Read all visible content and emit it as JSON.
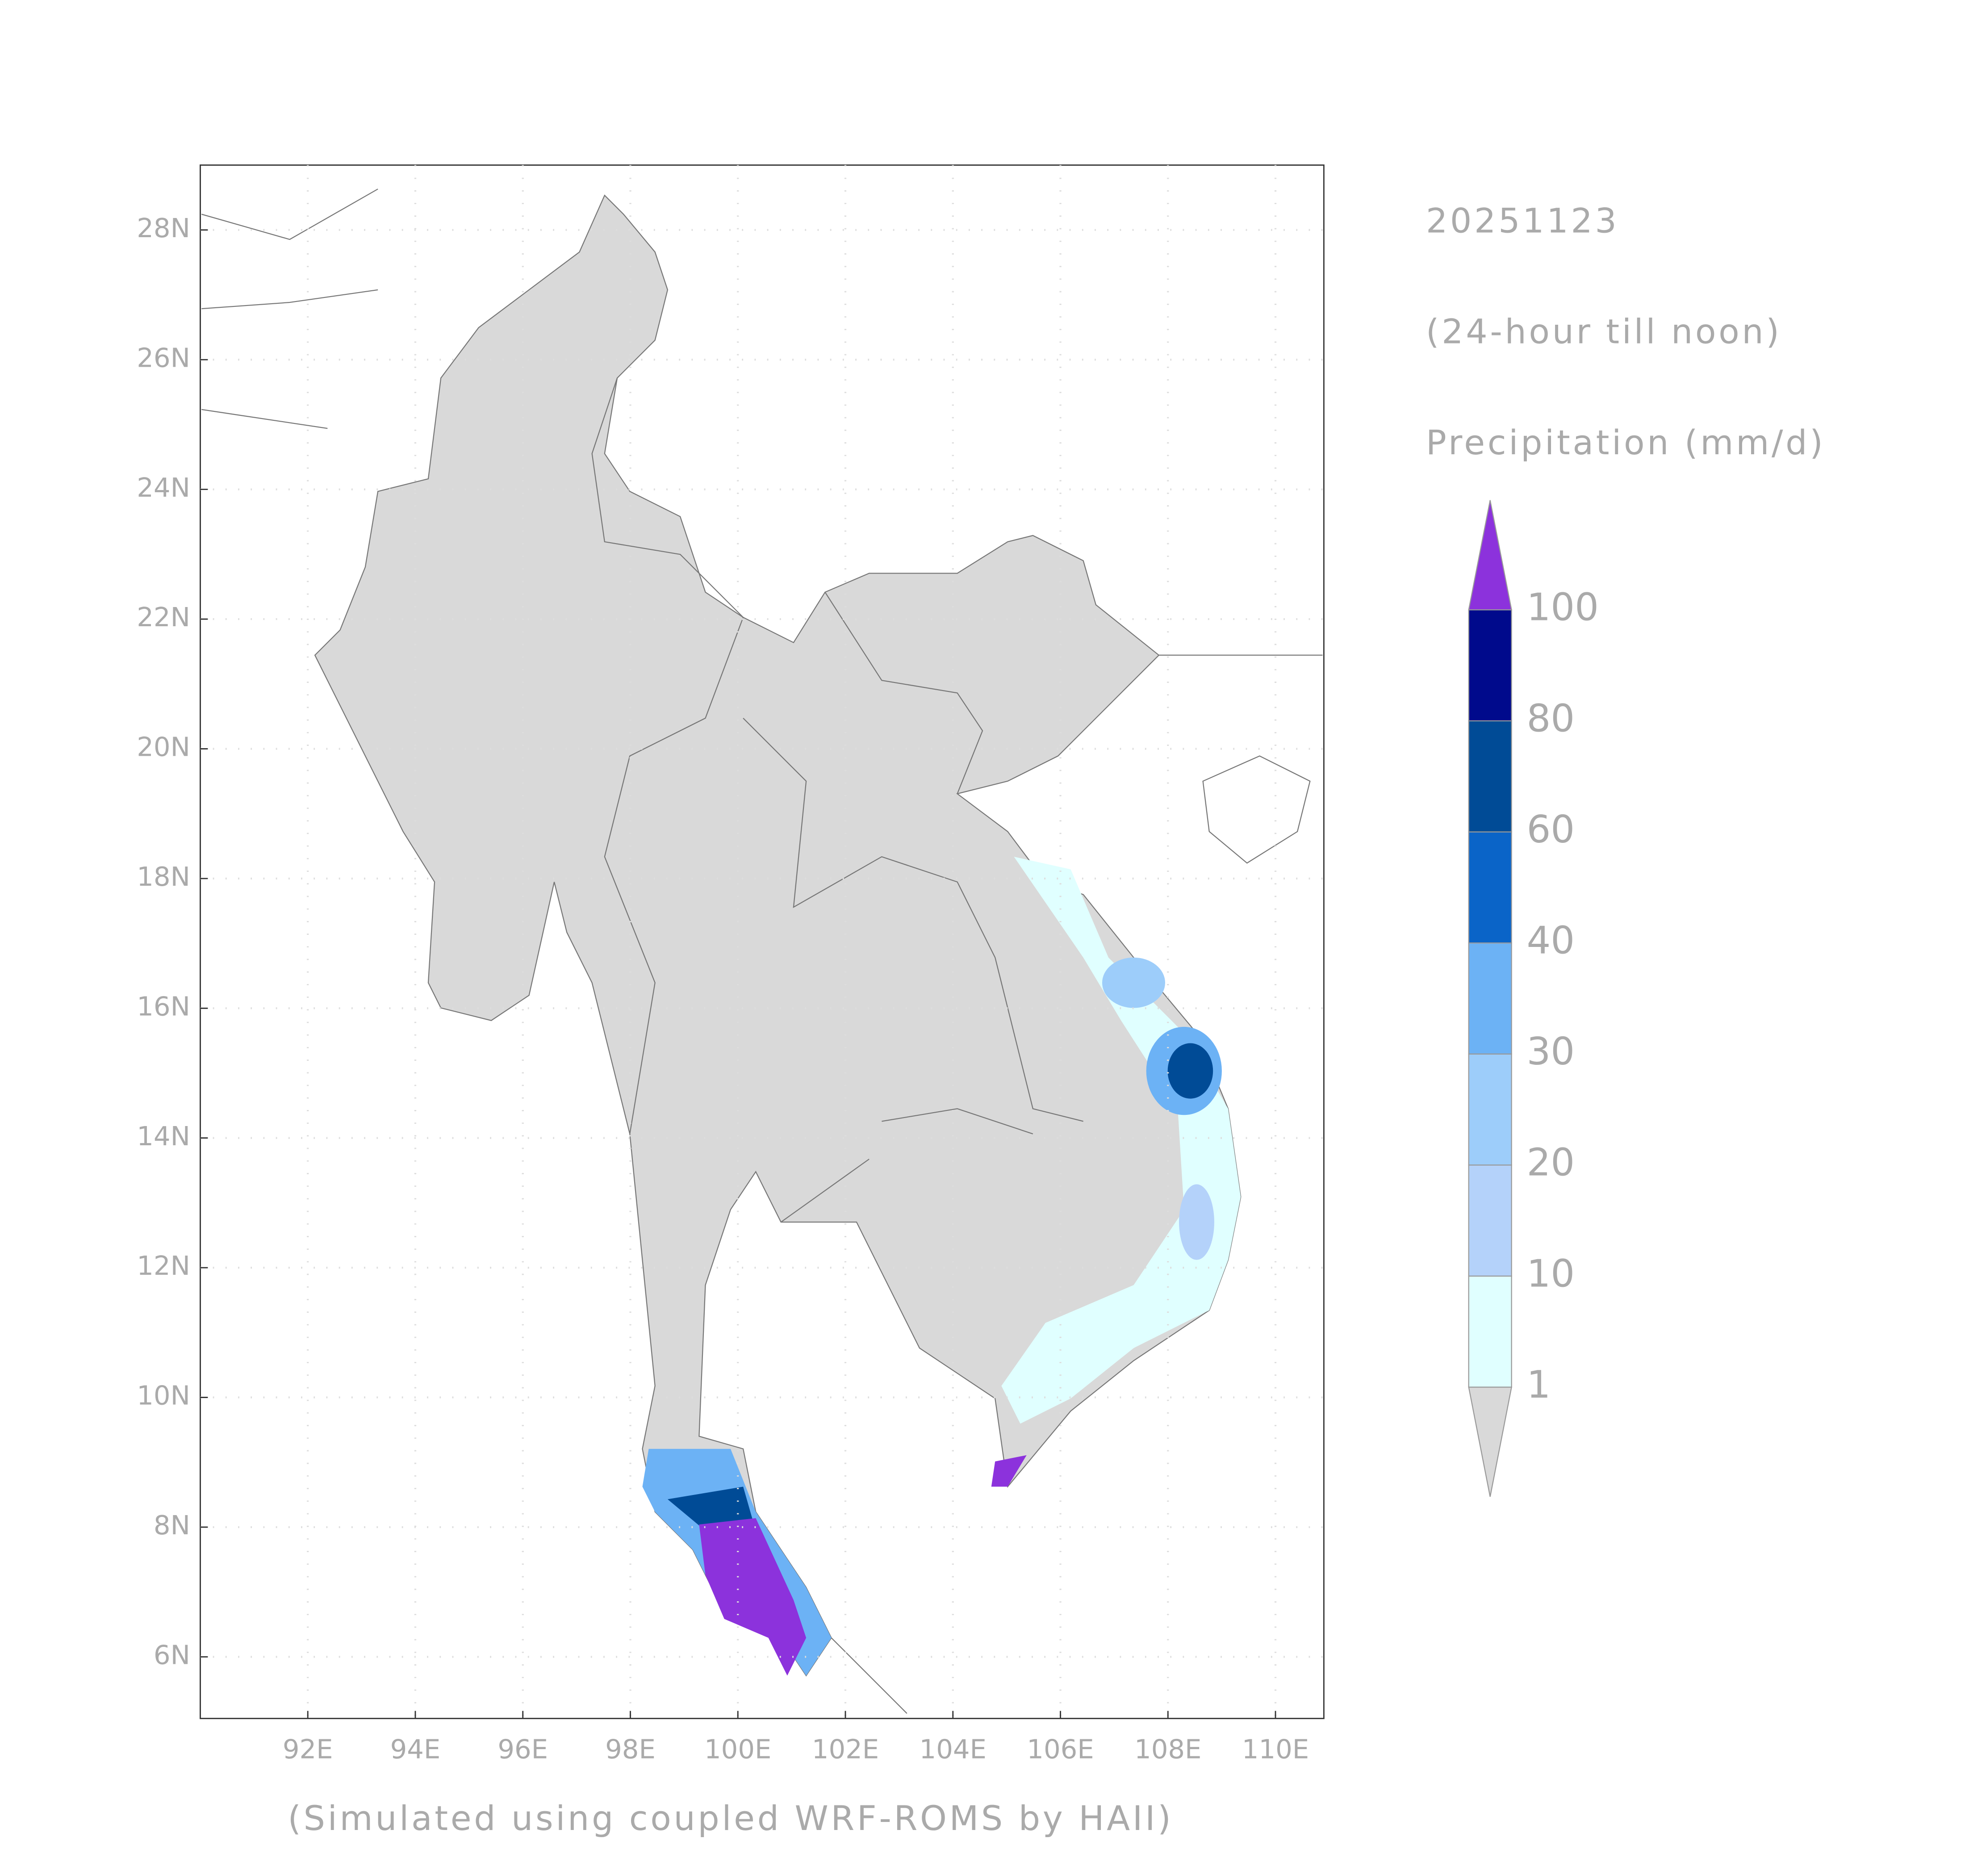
{
  "chart_data": {
    "type": "map",
    "title": "20251123",
    "subtitle": "(24-hour till noon)",
    "colorbar_label": "Precipitation (mm/d)",
    "footnote": "(Simulated using coupled WRF-ROMS by HAII)",
    "xlim": [
      90,
      110.9
    ],
    "ylim": [
      5.05,
      29
    ],
    "xticks": [
      {
        "value": 92,
        "label": "92E"
      },
      {
        "value": 94,
        "label": "94E"
      },
      {
        "value": 96,
        "label": "96E"
      },
      {
        "value": 98,
        "label": "98E"
      },
      {
        "value": 100,
        "label": "100E"
      },
      {
        "value": 102,
        "label": "102E"
      },
      {
        "value": 104,
        "label": "104E"
      },
      {
        "value": 106,
        "label": "106E"
      },
      {
        "value": 108,
        "label": "108E"
      },
      {
        "value": 110,
        "label": "110E"
      }
    ],
    "yticks": [
      {
        "value": 6,
        "label": "6N"
      },
      {
        "value": 8,
        "label": "8N"
      },
      {
        "value": 10,
        "label": "10N"
      },
      {
        "value": 12,
        "label": "12N"
      },
      {
        "value": 14,
        "label": "14N"
      },
      {
        "value": 16,
        "label": "16N"
      },
      {
        "value": 18,
        "label": "18N"
      },
      {
        "value": 20,
        "label": "20N"
      },
      {
        "value": 22,
        "label": "22N"
      },
      {
        "value": 24,
        "label": "24N"
      },
      {
        "value": 26,
        "label": "26N"
      },
      {
        "value": 28,
        "label": "28N"
      }
    ],
    "grid": true,
    "levels": [
      1,
      10,
      20,
      30,
      40,
      60,
      80,
      100
    ],
    "colors": [
      "#d9d9d9",
      "#e0ffff",
      "#b4d2fa",
      "#9dcdfa",
      "#6cb2f5",
      "#0a64c8",
      "#004b96",
      "#000a8c",
      "#8c32dc"
    ]
  }
}
